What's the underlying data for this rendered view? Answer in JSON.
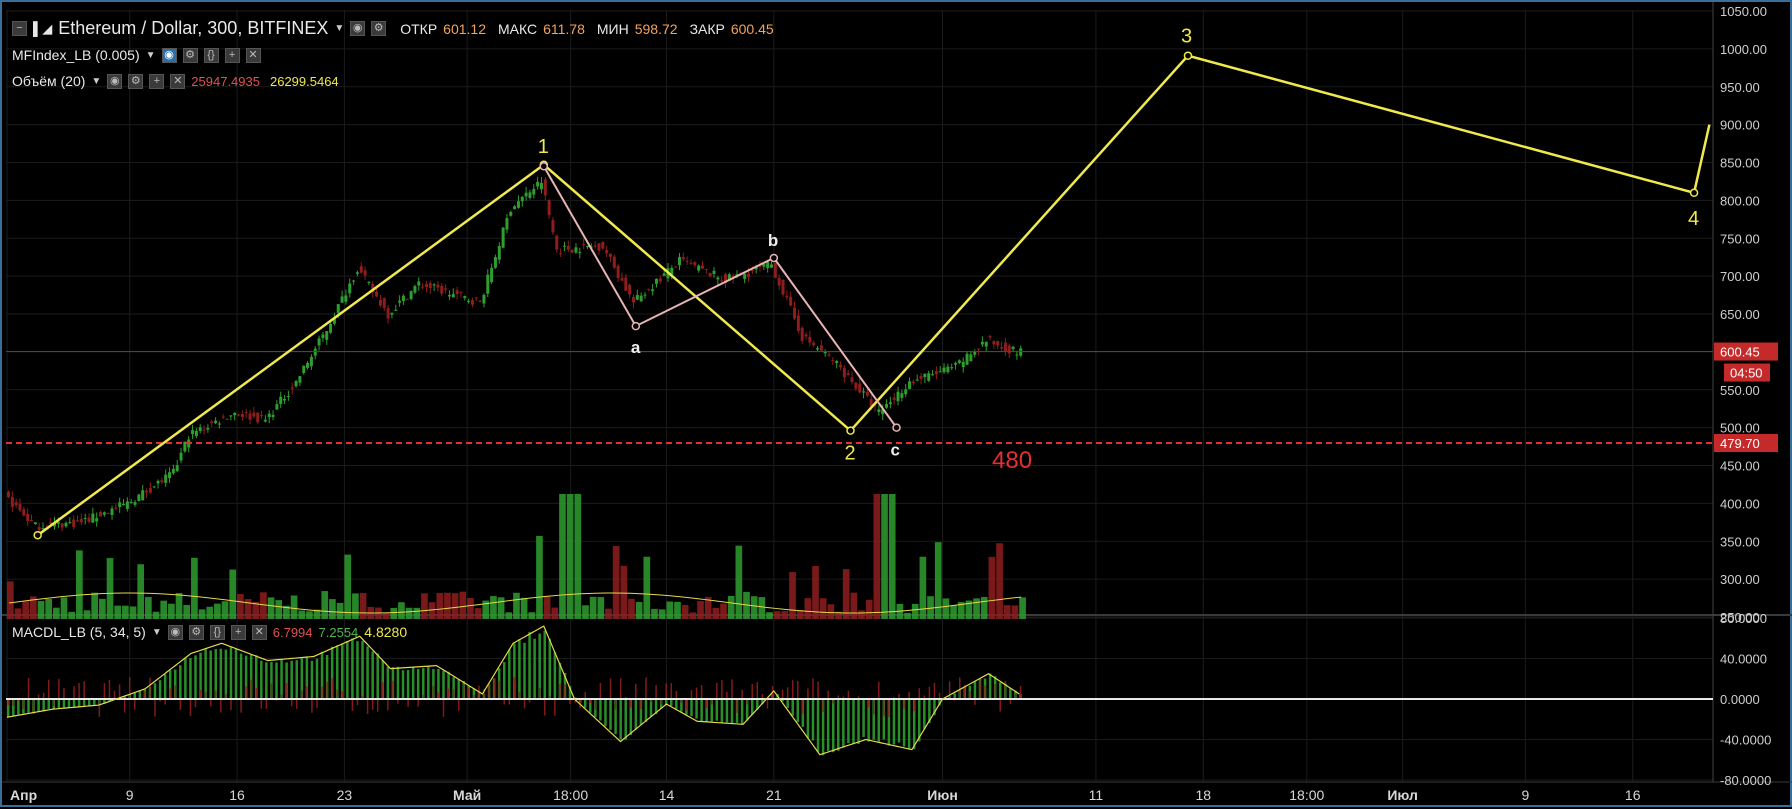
{
  "header": {
    "symbol": "Ethereum / Dollar, 300, BITFINEX",
    "open_label": "ОТКР",
    "open_value": "601.12",
    "high_label": "МАКС",
    "high_value": "611.78",
    "low_label": "МИН",
    "low_value": "598.72",
    "close_label": "ЗАКР",
    "close_value": "600.45"
  },
  "indicators": {
    "mfi": "MFIndex_LB (0.005)",
    "volume": "Объём (20)",
    "volume_value": "25947.4935",
    "volume_ma_value": "26299.5464",
    "macd": "MACDL_LB (5, 34, 5)",
    "macd_v1": "6.7994",
    "macd_v2": "7.2554",
    "macd_v3": "4.8280"
  },
  "colors": {
    "bull": "#2e9e2e",
    "bear": "#8f1d1d",
    "wave": "#f0e94d",
    "abc": "#e8b4b4",
    "support": "#e03030",
    "price_tag": "#c52a2a"
  },
  "price_tag": "600.45",
  "countdown": "04:50",
  "support_tag": "479.70",
  "support_label": "480",
  "x_axis_labels": [
    "Апр",
    "9",
    "16",
    "23",
    "Май",
    "18:00",
    "14",
    "21",
    "Июн",
    "11",
    "18",
    "18:00",
    "Июл",
    "9",
    "16"
  ],
  "chart_data": [
    {
      "type": "candlestick",
      "symbol": "Ethereum / Dollar",
      "ylim": [
        250,
        1050
      ],
      "y_ticks": [
        "1050.00",
        "1000.00",
        "950.00",
        "900.00",
        "850.00",
        "800.00",
        "750.00",
        "700.00",
        "650.00",
        "600.00",
        "550.00",
        "500.00",
        "450.00",
        "400.00",
        "350.00",
        "300.00",
        "250.00"
      ],
      "last_price": 600.45,
      "support_level": 479.7,
      "price_path": [
        {
          "date": "Апр 1",
          "price": 410
        },
        {
          "date": "Апр 3",
          "price": 370
        },
        {
          "date": "Апр 6",
          "price": 375
        },
        {
          "date": "Апр 9",
          "price": 400
        },
        {
          "date": "Апр 12",
          "price": 440
        },
        {
          "date": "Апр 13",
          "price": 490
        },
        {
          "date": "Апр 16",
          "price": 520
        },
        {
          "date": "Апр 18",
          "price": 510
        },
        {
          "date": "Апр 20",
          "price": 560
        },
        {
          "date": "Апр 22",
          "price": 630
        },
        {
          "date": "Апр 24",
          "price": 710
        },
        {
          "date": "Апр 26",
          "price": 650
        },
        {
          "date": "Апр 28",
          "price": 690
        },
        {
          "date": "Май 2",
          "price": 665
        },
        {
          "date": "Май 4",
          "price": 790
        },
        {
          "date": "Май 6",
          "price": 825
        },
        {
          "date": "Май 7",
          "price": 735
        },
        {
          "date": "Май 10",
          "price": 740
        },
        {
          "date": "Май 12",
          "price": 665
        },
        {
          "date": "Май 15",
          "price": 720
        },
        {
          "date": "Май 18",
          "price": 695
        },
        {
          "date": "Май 21",
          "price": 715
        },
        {
          "date": "Май 23",
          "price": 620
        },
        {
          "date": "Май 25",
          "price": 590
        },
        {
          "date": "Май 28",
          "price": 520
        },
        {
          "date": "Май 30",
          "price": 560
        },
        {
          "date": "Июн 2",
          "price": 580
        },
        {
          "date": "Июн 4",
          "price": 615
        },
        {
          "date": "Июн 6",
          "price": 600
        }
      ],
      "wave_labels": [
        "1",
        "2",
        "3",
        "4"
      ],
      "wave_points": [
        {
          "label": "",
          "date": "Апр 3",
          "price": 358
        },
        {
          "label": "1",
          "date": "Май 6",
          "price": 847
        },
        {
          "label": "2",
          "date": "Май 26",
          "price": 496
        },
        {
          "label": "3",
          "date": "Июн 17",
          "price": 991
        },
        {
          "label": "4",
          "date": "Июл 20",
          "price": 810
        }
      ],
      "wave_tail": {
        "date": "Июл 21",
        "price": 900
      },
      "correction_labels": [
        "a",
        "b",
        "c"
      ],
      "correction_points": [
        {
          "label": "",
          "date": "Май 6",
          "price": 845
        },
        {
          "label": "a",
          "date": "Май 12",
          "price": 634
        },
        {
          "label": "b",
          "date": "Май 21",
          "price": 724
        },
        {
          "label": "c",
          "date": "Май 29",
          "price": 500
        }
      ]
    },
    {
      "type": "bar",
      "name": "Объём (20)",
      "note": "volume histogram below price"
    },
    {
      "type": "area",
      "name": "MACDL_LB (5, 34, 5)",
      "ylim": [
        -80,
        80
      ],
      "y_ticks": [
        "80.0000",
        "40.0000",
        "0.0000",
        "-40.0000",
        "-80.0000"
      ],
      "signal_path": [
        {
          "date": "Апр 1",
          "value": -18
        },
        {
          "date": "Апр 4",
          "value": -10
        },
        {
          "date": "Апр 7",
          "value": -6
        },
        {
          "date": "Апр 10",
          "value": 10
        },
        {
          "date": "Апр 13",
          "value": 45
        },
        {
          "date": "Апр 15",
          "value": 55
        },
        {
          "date": "Апр 18",
          "value": 38
        },
        {
          "date": "Апр 21",
          "value": 42
        },
        {
          "date": "Апр 24",
          "value": 62
        },
        {
          "date": "Апр 26",
          "value": 30
        },
        {
          "date": "Апр 29",
          "value": 33
        },
        {
          "date": "Май 2",
          "value": 5
        },
        {
          "date": "Май 4",
          "value": 55
        },
        {
          "date": "Май 6",
          "value": 72
        },
        {
          "date": "Май 8",
          "value": 0
        },
        {
          "date": "Май 11",
          "value": -42
        },
        {
          "date": "Май 14",
          "value": -5
        },
        {
          "date": "Май 16",
          "value": -22
        },
        {
          "date": "Май 19",
          "value": -25
        },
        {
          "date": "Май 21",
          "value": 8
        },
        {
          "date": "Май 24",
          "value": -55
        },
        {
          "date": "Май 27",
          "value": -40
        },
        {
          "date": "Май 30",
          "value": -50
        },
        {
          "date": "Июн 1",
          "value": 0
        },
        {
          "date": "Июн 4",
          "value": 25
        },
        {
          "date": "Июн 6",
          "value": 5
        }
      ]
    }
  ]
}
